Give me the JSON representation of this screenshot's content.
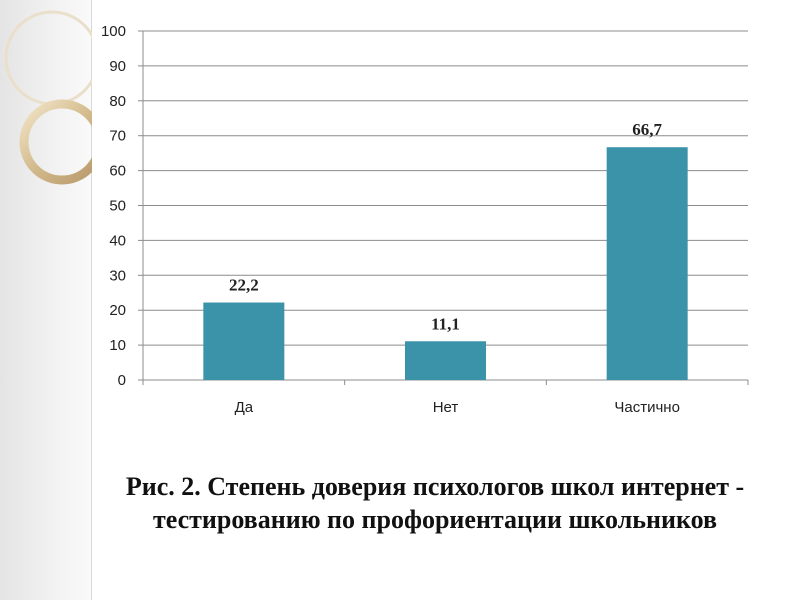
{
  "chart_data": {
    "type": "bar",
    "categories": [
      "Да",
      "Нет",
      "Частично"
    ],
    "values": [
      22.2,
      11.1,
      66.7
    ],
    "data_labels": [
      "22,2",
      "11,1",
      "66,7"
    ],
    "ylim": [
      0,
      100
    ],
    "yticks": [
      0,
      10,
      20,
      30,
      40,
      50,
      60,
      70,
      80,
      90,
      100
    ],
    "grid": true,
    "legend": "none",
    "bar_color": "#3a93a8"
  },
  "caption": "Рис. 2. Степень доверия психологов школ интернет - тестированию по профориентации школьников"
}
